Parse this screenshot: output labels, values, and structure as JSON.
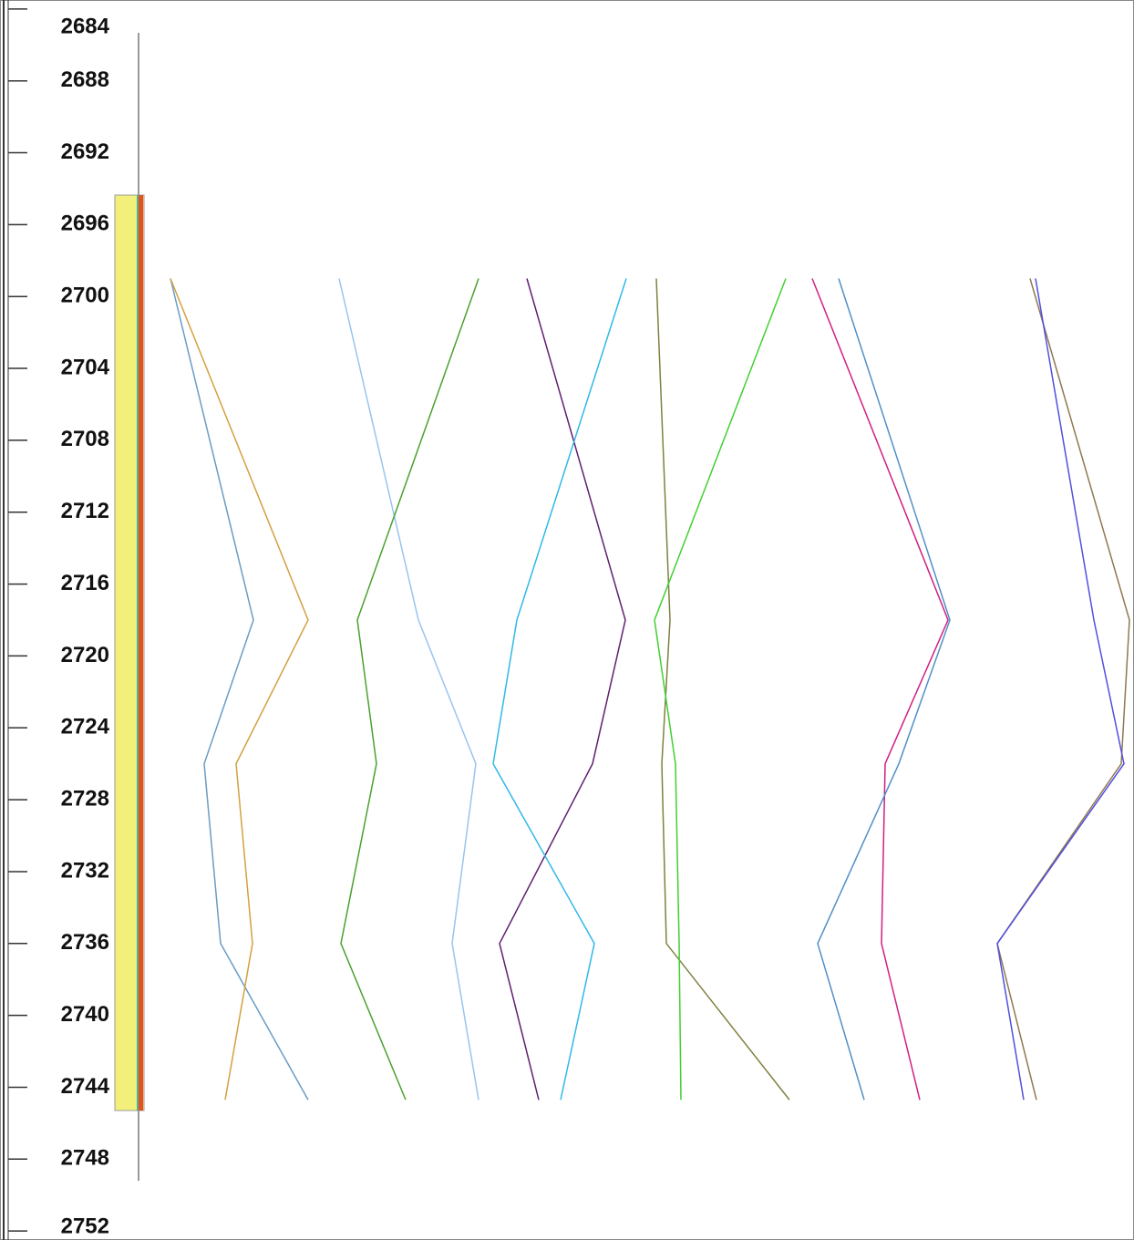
{
  "chart_data": {
    "type": "line",
    "orientation": "depth",
    "y": [
      2699,
      2718,
      2726,
      2736,
      2744.7
    ],
    "ylim": [
      2683.5,
      2752.5
    ],
    "yticks": [
      2684,
      2688,
      2692,
      2696,
      2700,
      2704,
      2708,
      2712,
      2716,
      2720,
      2724,
      2728,
      2732,
      2736,
      2740,
      2744,
      2748,
      2752
    ],
    "xlim": [
      0,
      1244
    ],
    "series": [
      {
        "color": "#6a9cc4",
        "values": [
          187,
          278,
          224,
          242,
          338
        ]
      },
      {
        "color": "#d4a040",
        "values": [
          187,
          338,
          259,
          277,
          247
        ]
      },
      {
        "color": "#98c4f0",
        "values": [
          372,
          459,
          522,
          496,
          525
        ]
      },
      {
        "color": "#4aa030",
        "values": [
          525,
          392,
          413,
          374,
          445
        ]
      },
      {
        "color": "#602070",
        "values": [
          578,
          686,
          650,
          548,
          591
        ]
      },
      {
        "color": "#30b8e8",
        "values": [
          687,
          567,
          541,
          652,
          615
        ]
      },
      {
        "color": "#808040",
        "values": [
          720,
          735,
          726,
          731,
          866
        ]
      },
      {
        "color": "#40d030",
        "values": [
          862,
          718,
          741,
          745,
          747
        ]
      },
      {
        "color": "#d02080",
        "values": [
          891,
          1040,
          971,
          967,
          1009
        ]
      },
      {
        "color": "#5090c8",
        "values": [
          920,
          1042,
          986,
          897,
          948
        ]
      },
      {
        "color": "#907850",
        "values": [
          1130,
          1239,
          1230,
          1094,
          1137
        ]
      },
      {
        "color": "#5050e0",
        "values": [
          1136,
          1200,
          1233,
          1094,
          1123
        ]
      }
    ]
  }
}
